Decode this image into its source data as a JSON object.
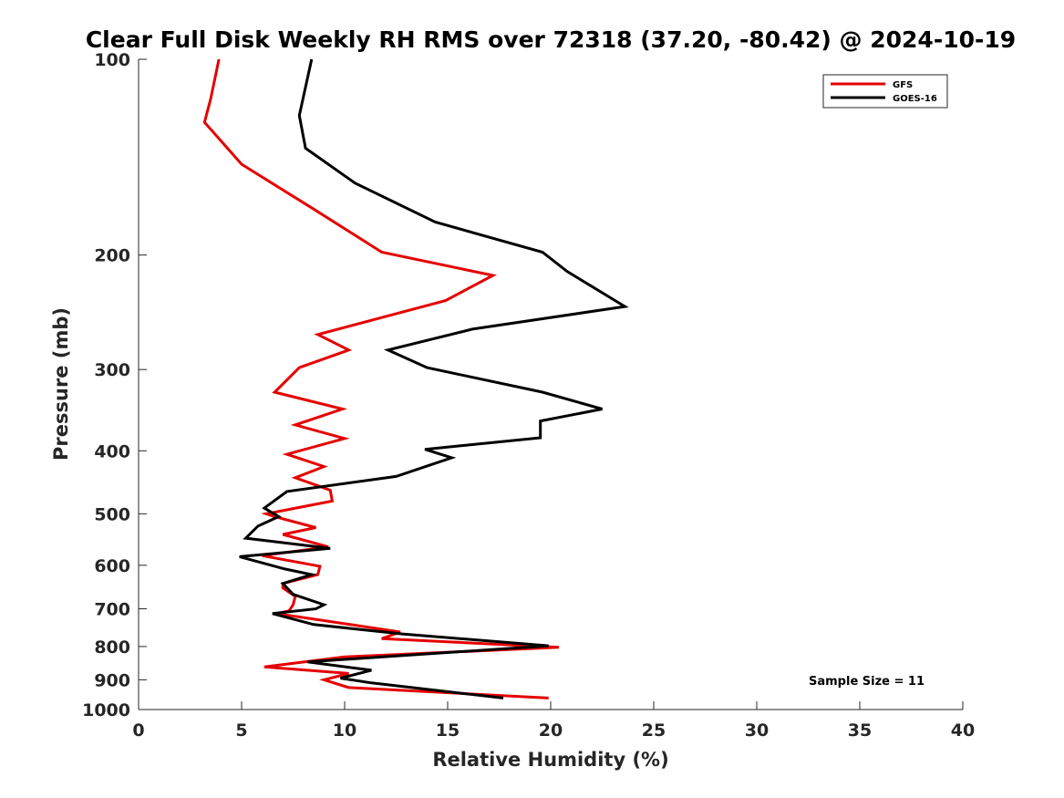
{
  "chart_data": {
    "type": "line",
    "title": "Clear Full Disk Weekly RH RMS over 72318 (37.20, -80.42) @ 2024-10-19",
    "xlabel": "Relative Humidity (%)",
    "ylabel": "Pressure (mb)",
    "xlim": [
      0,
      40
    ],
    "ylim": [
      100,
      1000
    ],
    "y_scale": "log",
    "y_reversed": true,
    "x_ticks": [
      "0",
      "5",
      "10",
      "15",
      "20",
      "25",
      "30",
      "35",
      "40"
    ],
    "y_ticks": [
      "100",
      "200",
      "300",
      "400",
      "500",
      "600",
      "700",
      "800",
      "900",
      "1000"
    ],
    "grid": false,
    "legend_position": "top-right",
    "annotation": "Sample Size = 11",
    "series": [
      {
        "name": "GFS",
        "color": "#e50000",
        "points": [
          [
            3.9,
            100
          ],
          [
            3.5,
            115
          ],
          [
            3.2,
            125
          ],
          [
            5.0,
            145
          ],
          [
            8.5,
            170
          ],
          [
            11.8,
            198
          ],
          [
            17.2,
            215
          ],
          [
            14.9,
            235
          ],
          [
            8.7,
            265
          ],
          [
            10.2,
            280
          ],
          [
            7.8,
            298
          ],
          [
            6.6,
            325
          ],
          [
            9.9,
            345
          ],
          [
            7.6,
            365
          ],
          [
            10.0,
            383
          ],
          [
            7.2,
            405
          ],
          [
            9.0,
            423
          ],
          [
            7.6,
            440
          ],
          [
            9.3,
            460
          ],
          [
            9.4,
            478
          ],
          [
            6.2,
            500
          ],
          [
            6.6,
            505
          ],
          [
            8.6,
            525
          ],
          [
            7.0,
            538
          ],
          [
            9.2,
            562
          ],
          [
            6.0,
            580
          ],
          [
            8.8,
            602
          ],
          [
            8.7,
            620
          ],
          [
            7.0,
            640
          ],
          [
            7.0,
            650
          ],
          [
            7.6,
            670
          ],
          [
            7.5,
            690
          ],
          [
            7.3,
            705
          ],
          [
            6.7,
            712
          ],
          [
            9.0,
            730
          ],
          [
            12.7,
            760
          ],
          [
            11.8,
            778
          ],
          [
            20.4,
            802
          ],
          [
            10.0,
            830
          ],
          [
            6.1,
            860
          ],
          [
            10.2,
            880
          ],
          [
            9.0,
            900
          ],
          [
            10.2,
            925
          ],
          [
            19.9,
            960
          ]
        ]
      },
      {
        "name": "GOES-16",
        "color": "#000000",
        "points": [
          [
            8.4,
            100
          ],
          [
            7.8,
            122
          ],
          [
            8.1,
            137
          ],
          [
            10.5,
            155
          ],
          [
            14.4,
            178
          ],
          [
            19.6,
            198
          ],
          [
            20.8,
            212
          ],
          [
            23.6,
            240
          ],
          [
            16.2,
            260
          ],
          [
            12.1,
            280
          ],
          [
            14.0,
            298
          ],
          [
            19.6,
            325
          ],
          [
            22.5,
            345
          ],
          [
            19.5,
            360
          ],
          [
            19.5,
            382
          ],
          [
            13.9,
            398
          ],
          [
            15.2,
            410
          ],
          [
            12.5,
            438
          ],
          [
            7.2,
            462
          ],
          [
            6.1,
            490
          ],
          [
            6.8,
            505
          ],
          [
            5.8,
            522
          ],
          [
            5.2,
            545
          ],
          [
            9.3,
            565
          ],
          [
            4.9,
            582
          ],
          [
            7.1,
            608
          ],
          [
            8.4,
            620
          ],
          [
            7.0,
            640
          ],
          [
            7.5,
            665
          ],
          [
            9.0,
            690
          ],
          [
            8.6,
            700
          ],
          [
            6.5,
            712
          ],
          [
            8.5,
            740
          ],
          [
            12.8,
            765
          ],
          [
            19.9,
            798
          ],
          [
            8.2,
            845
          ],
          [
            11.3,
            870
          ],
          [
            9.8,
            895
          ],
          [
            11.3,
            910
          ],
          [
            17.7,
            960
          ]
        ]
      }
    ]
  }
}
